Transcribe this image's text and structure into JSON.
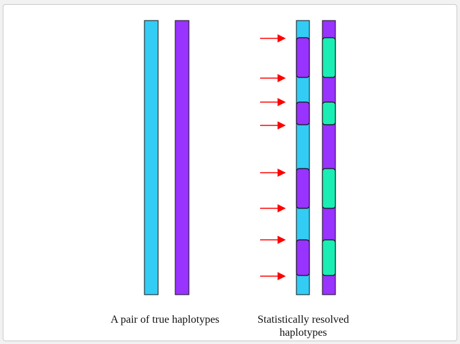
{
  "colors": {
    "light_blue": "#33ccf5",
    "purple": "#9933ff",
    "green": "#1aeeb4",
    "arrow": "#ff0000",
    "outline": "#111111"
  },
  "captions": {
    "true_haplotypes": "A pair of true haplotypes",
    "resolved_haplotypes": "Statistically resolved haplotypes"
  }
}
